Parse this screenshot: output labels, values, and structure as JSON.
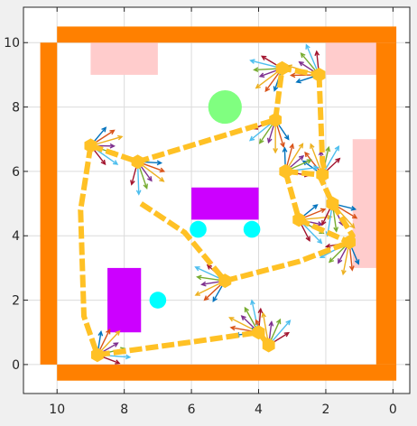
{
  "chart_data": {
    "type": "scatter",
    "title": "",
    "xlabel": "",
    "ylabel": "",
    "xlim": [
      11,
      -0.5
    ],
    "ylim": [
      -0.9,
      11.1
    ],
    "x_reversed": true,
    "grid": true,
    "x_ticks": [
      10,
      8,
      6,
      4,
      2,
      0
    ],
    "x_tick_labels": [
      "10",
      "8",
      "6",
      "4",
      "2",
      "0"
    ],
    "y_ticks": [
      0,
      2,
      4,
      6,
      8,
      10
    ],
    "y_tick_labels": [
      "0",
      "2",
      "4",
      "6",
      "8",
      "10"
    ],
    "colors": {
      "figure_bg": "#f0f0f0",
      "axes_bg": "#ffffff",
      "grid": "#dcdcdc",
      "wall": "#ff8000",
      "pink_zone": "#ffcccc",
      "obstacle": "#cc00ff",
      "circle_obstacle": "#00ffff",
      "goal": "#80ff80",
      "path": "#ffc125",
      "arrows": [
        "#0072bd",
        "#d95319",
        "#edb120",
        "#7e2f8e",
        "#77ac30",
        "#4dbeee",
        "#a2142f"
      ]
    },
    "walls": [
      {
        "x0": 10,
        "x1": -0.1,
        "y0": 10,
        "y1": 10.5
      },
      {
        "x0": 10,
        "x1": -0.1,
        "y0": -0.5,
        "y1": 0
      },
      {
        "x0": 10.5,
        "x1": 10,
        "y0": 0,
        "y1": 10
      },
      {
        "x0": 0.5,
        "x1": -0.1,
        "y0": 0,
        "y1": 10
      }
    ],
    "pink_zones": [
      {
        "x0": 9,
        "x1": 7,
        "y0": 9,
        "y1": 10
      },
      {
        "x0": 2,
        "x1": 0,
        "y0": 9,
        "y1": 10
      },
      {
        "x0": 1.2,
        "x1": 0,
        "y0": 3,
        "y1": 7
      }
    ],
    "obstacles_rect": [
      {
        "x0": 6,
        "x1": 4,
        "y0": 4.5,
        "y1": 5.5
      },
      {
        "x0": 8.5,
        "x1": 7.5,
        "y0": 1,
        "y1": 3
      }
    ],
    "obstacles_circle": [
      {
        "x": 5.8,
        "y": 4.2,
        "r": 0.25
      },
      {
        "x": 4.2,
        "y": 4.2,
        "r": 0.25
      },
      {
        "x": 7,
        "y": 2,
        "r": 0.25
      }
    ],
    "goal": {
      "x": 5,
      "y": 8,
      "r": 0.5
    },
    "path_segments": [
      [
        [
          9,
          6.8
        ],
        [
          7.6,
          6.3
        ],
        [
          3.5,
          7.6
        ]
      ],
      [
        [
          3.5,
          7.6
        ],
        [
          3.3,
          9.2
        ],
        [
          2.2,
          9
        ]
      ],
      [
        [
          2.2,
          9
        ],
        [
          2.1,
          6.3
        ],
        [
          2,
          5.9
        ]
      ],
      [
        [
          3.2,
          6
        ],
        [
          2.8,
          4.5
        ],
        [
          1.3,
          3.8
        ]
      ],
      [
        [
          9,
          6.8
        ],
        [
          9.3,
          4.8
        ],
        [
          9.2,
          1.5
        ],
        [
          8.8,
          0.3
        ]
      ],
      [
        [
          8.8,
          0.3
        ],
        [
          6,
          0.7
        ],
        [
          4,
          1
        ]
      ],
      [
        [
          4,
          1
        ],
        [
          3.7,
          0.6
        ]
      ],
      [
        [
          7.5,
          5
        ],
        [
          6.2,
          4.1
        ],
        [
          5,
          2.6
        ]
      ],
      [
        [
          5,
          2.6
        ],
        [
          2.8,
          3.2
        ],
        [
          1.3,
          3.8
        ]
      ],
      [
        [
          3.2,
          6
        ],
        [
          2.2,
          5.9
        ],
        [
          1.8,
          5
        ]
      ],
      [
        [
          1.8,
          5
        ],
        [
          1.2,
          4
        ],
        [
          1.3,
          3.8
        ]
      ]
    ],
    "robots": [
      {
        "x": 9,
        "y": 6.8
      },
      {
        "x": 7.6,
        "y": 6.3
      },
      {
        "x": 3.5,
        "y": 7.6
      },
      {
        "x": 3.3,
        "y": 9.2
      },
      {
        "x": 2.2,
        "y": 9
      },
      {
        "x": 2.1,
        "y": 5.9
      },
      {
        "x": 3.2,
        "y": 6
      },
      {
        "x": 2.8,
        "y": 4.5
      },
      {
        "x": 1.8,
        "y": 5
      },
      {
        "x": 1.3,
        "y": 3.8
      },
      {
        "x": 5,
        "y": 2.6
      },
      {
        "x": 4,
        "y": 1
      },
      {
        "x": 3.7,
        "y": 0.6
      },
      {
        "x": 8.8,
        "y": 0.3
      }
    ]
  }
}
